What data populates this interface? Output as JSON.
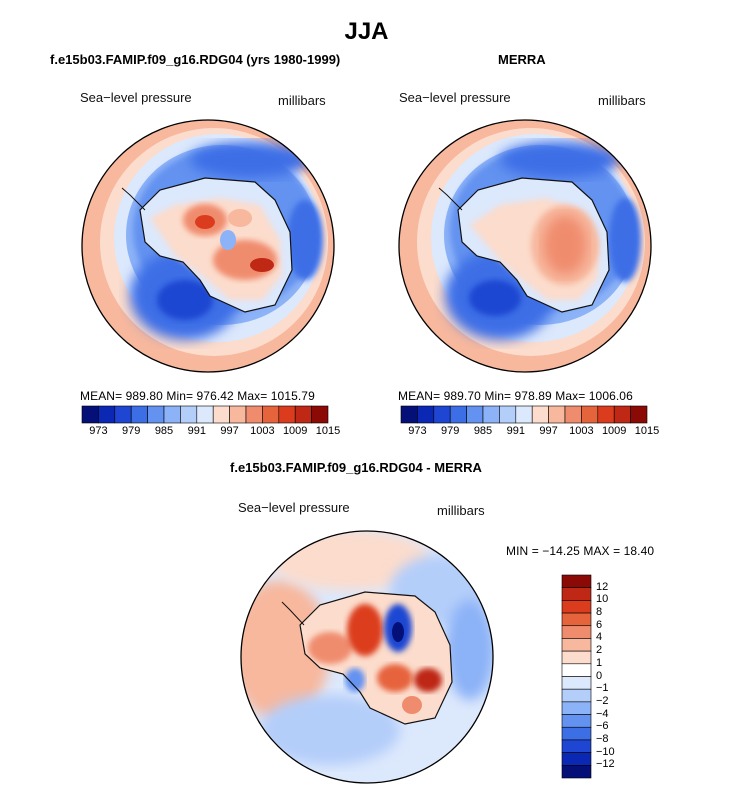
{
  "title": "JJA",
  "panels": [
    {
      "title": "f.e15b03.FAMIP.f09_g16.RDG04 (yrs 1980-1999)",
      "left_label": "Sea−level pressure",
      "right_label": "millibars",
      "stats": "MEAN= 989.80   Min= 976.42   Max= 1015.79"
    },
    {
      "title": "MERRA",
      "left_label": "Sea−level pressure",
      "right_label": "millibars",
      "stats": "MEAN= 989.70   Min= 978.89   Max= 1006.06"
    },
    {
      "title": "f.e15b03.FAMIP.f09_g16.RDG04 - MERRA",
      "left_label": "Sea−level pressure",
      "right_label": "millibars",
      "stats": "MIN = −14.25  MAX =   18.40"
    }
  ],
  "colorbar_abs": {
    "labels": [
      "973",
      "979",
      "985",
      "991",
      "997",
      "1003",
      "1009",
      "1015"
    ],
    "colors": [
      "#050f78",
      "#0a28b4",
      "#1e46d2",
      "#3c6ee6",
      "#6492f0",
      "#8cb2f7",
      "#b4cefa",
      "#dce8fc",
      "#fcdccc",
      "#f7b89e",
      "#f08c6e",
      "#e6643c",
      "#dc3c1e",
      "#be2814",
      "#8c0a05"
    ]
  },
  "colorbar_diff": {
    "labels": [
      "12",
      "10",
      "8",
      "6",
      "4",
      "2",
      "1",
      "0",
      "−1",
      "−2",
      "−4",
      "−6",
      "−8",
      "−10",
      "−12"
    ],
    "colors": [
      "#8c0a05",
      "#be2814",
      "#dc3c1e",
      "#e6643c",
      "#f08c6e",
      "#f7b89e",
      "#fcdccc",
      "#ffffff",
      "#dce8fc",
      "#b4cefa",
      "#8cb2f7",
      "#6492f0",
      "#3c6ee6",
      "#1e46d2",
      "#0a28b4",
      "#050f78"
    ]
  },
  "chart_data": [
    {
      "type": "heatmap",
      "title": "f.e15b03.FAMIP.f09_g16.RDG04 (yrs 1980-1999)",
      "variable": "Sea−level pressure",
      "units": "millibars",
      "mean": 989.8,
      "min": 976.42,
      "max": 1015.79,
      "contour_levels": [
        973,
        976,
        979,
        982,
        985,
        988,
        991,
        994,
        997,
        1000,
        1003,
        1006,
        1009,
        1012,
        1015
      ]
    },
    {
      "type": "heatmap",
      "title": "MERRA",
      "variable": "Sea−level pressure",
      "units": "millibars",
      "mean": 989.7,
      "min": 978.89,
      "max": 1006.06,
      "contour_levels": [
        973,
        976,
        979,
        982,
        985,
        988,
        991,
        994,
        997,
        1000,
        1003,
        1006,
        1009,
        1012,
        1015
      ]
    },
    {
      "type": "heatmap",
      "title": "f.e15b03.FAMIP.f09_g16.RDG04 - MERRA",
      "variable": "Sea−level pressure",
      "units": "millibars",
      "min": -14.25,
      "max": 18.4,
      "contour_levels": [
        -12,
        -10,
        -8,
        -6,
        -4,
        -2,
        -1,
        0,
        1,
        2,
        4,
        6,
        8,
        10,
        12
      ]
    }
  ]
}
